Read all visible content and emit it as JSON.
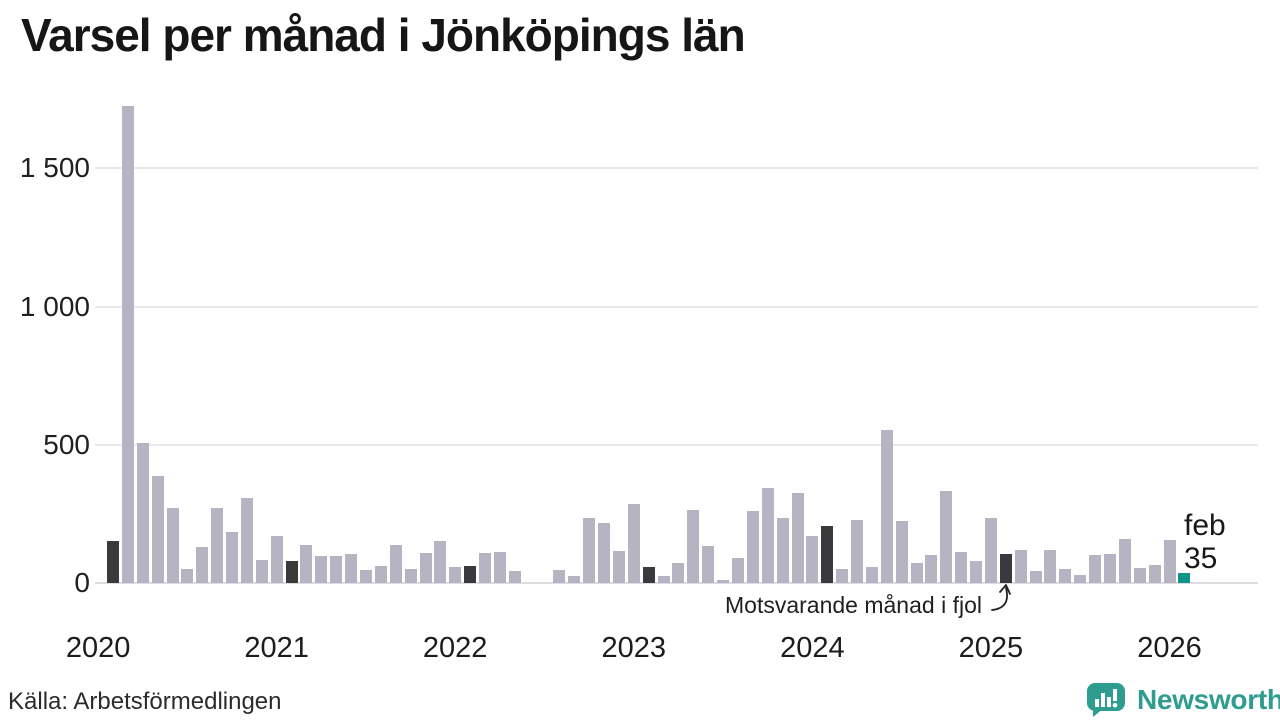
{
  "title": "Varsel per månad i Jönköpings län",
  "source": "Källa: Arbetsförmedlingen",
  "branding": {
    "name": "Newsworthy",
    "color": "#2e9c8e"
  },
  "annotations": {
    "fjol_label": "Motsvarande månad i fjol",
    "latest_month_label": "feb",
    "latest_value_label": "35"
  },
  "colors": {
    "bar": "#b6b3c2",
    "bar_dark": "#3a393c",
    "bar_accent": "#0f948a",
    "grid": "#e8e8ec",
    "text": "#1c1c1c"
  },
  "chart_data": {
    "type": "bar",
    "title": "Varsel per månad i Jönköpings län",
    "xlabel": "",
    "ylabel": "",
    "ylim": [
      0,
      1750
    ],
    "grid": "horizontal",
    "legend": "none",
    "yticks": [
      {
        "value": 0,
        "label": "0"
      },
      {
        "value": 500,
        "label": "500"
      },
      {
        "value": 1000,
        "label": "1 000"
      },
      {
        "value": 1500,
        "label": "1 500"
      }
    ],
    "year_ticks": [
      "2020",
      "2021",
      "2022",
      "2023",
      "2024",
      "2025",
      "2026"
    ],
    "highlight_dark_meaning": "Motsvarande månad i fjol (februari varje år)",
    "highlight_accent_meaning": "Senaste månaden (feb 2026 = 35)",
    "months": [
      {
        "m": "2020-02",
        "v": 152,
        "t": "dark"
      },
      {
        "m": "2020-03",
        "v": 1725
      },
      {
        "m": "2020-04",
        "v": 507
      },
      {
        "m": "2020-05",
        "v": 388
      },
      {
        "m": "2020-06",
        "v": 273
      },
      {
        "m": "2020-07",
        "v": 50
      },
      {
        "m": "2020-08",
        "v": 131
      },
      {
        "m": "2020-09",
        "v": 273
      },
      {
        "m": "2020-10",
        "v": 186
      },
      {
        "m": "2020-11",
        "v": 309
      },
      {
        "m": "2020-12",
        "v": 84
      },
      {
        "m": "2021-01",
        "v": 171
      },
      {
        "m": "2021-02",
        "v": 78,
        "t": "dark"
      },
      {
        "m": "2021-03",
        "v": 138
      },
      {
        "m": "2021-04",
        "v": 96
      },
      {
        "m": "2021-05",
        "v": 96
      },
      {
        "m": "2021-06",
        "v": 104
      },
      {
        "m": "2021-07",
        "v": 47
      },
      {
        "m": "2021-08",
        "v": 60
      },
      {
        "m": "2021-09",
        "v": 139
      },
      {
        "m": "2021-10",
        "v": 51
      },
      {
        "m": "2021-11",
        "v": 109
      },
      {
        "m": "2021-12",
        "v": 153
      },
      {
        "m": "2022-01",
        "v": 57
      },
      {
        "m": "2022-02",
        "v": 63,
        "t": "dark"
      },
      {
        "m": "2022-03",
        "v": 109
      },
      {
        "m": "2022-04",
        "v": 113
      },
      {
        "m": "2022-05",
        "v": 45
      },
      {
        "m": "2022-06",
        "v": 0
      },
      {
        "m": "2022-07",
        "v": 0
      },
      {
        "m": "2022-08",
        "v": 46
      },
      {
        "m": "2022-09",
        "v": 24
      },
      {
        "m": "2022-10",
        "v": 236
      },
      {
        "m": "2022-11",
        "v": 217
      },
      {
        "m": "2022-12",
        "v": 115
      },
      {
        "m": "2023-01",
        "v": 286
      },
      {
        "m": "2023-02",
        "v": 57,
        "t": "dark"
      },
      {
        "m": "2023-03",
        "v": 24
      },
      {
        "m": "2023-04",
        "v": 71
      },
      {
        "m": "2023-05",
        "v": 265
      },
      {
        "m": "2023-06",
        "v": 133
      },
      {
        "m": "2023-07",
        "v": 12
      },
      {
        "m": "2023-08",
        "v": 91
      },
      {
        "m": "2023-09",
        "v": 260
      },
      {
        "m": "2023-10",
        "v": 344
      },
      {
        "m": "2023-11",
        "v": 236
      },
      {
        "m": "2023-12",
        "v": 325
      },
      {
        "m": "2024-01",
        "v": 169
      },
      {
        "m": "2024-02",
        "v": 205,
        "t": "dark"
      },
      {
        "m": "2024-03",
        "v": 51
      },
      {
        "m": "2024-04",
        "v": 229
      },
      {
        "m": "2024-05",
        "v": 57
      },
      {
        "m": "2024-06",
        "v": 555
      },
      {
        "m": "2024-07",
        "v": 223
      },
      {
        "m": "2024-08",
        "v": 72
      },
      {
        "m": "2024-09",
        "v": 103
      },
      {
        "m": "2024-10",
        "v": 332
      },
      {
        "m": "2024-11",
        "v": 111
      },
      {
        "m": "2024-12",
        "v": 79
      },
      {
        "m": "2025-01",
        "v": 236
      },
      {
        "m": "2025-02",
        "v": 105,
        "t": "dark"
      },
      {
        "m": "2025-03",
        "v": 121
      },
      {
        "m": "2025-04",
        "v": 42
      },
      {
        "m": "2025-05",
        "v": 121
      },
      {
        "m": "2025-06",
        "v": 51
      },
      {
        "m": "2025-07",
        "v": 30
      },
      {
        "m": "2025-08",
        "v": 103
      },
      {
        "m": "2025-09",
        "v": 105
      },
      {
        "m": "2025-10",
        "v": 159
      },
      {
        "m": "2025-11",
        "v": 54
      },
      {
        "m": "2025-12",
        "v": 66
      },
      {
        "m": "2026-01",
        "v": 157
      },
      {
        "m": "2026-02",
        "v": 35,
        "t": "accent"
      }
    ]
  }
}
